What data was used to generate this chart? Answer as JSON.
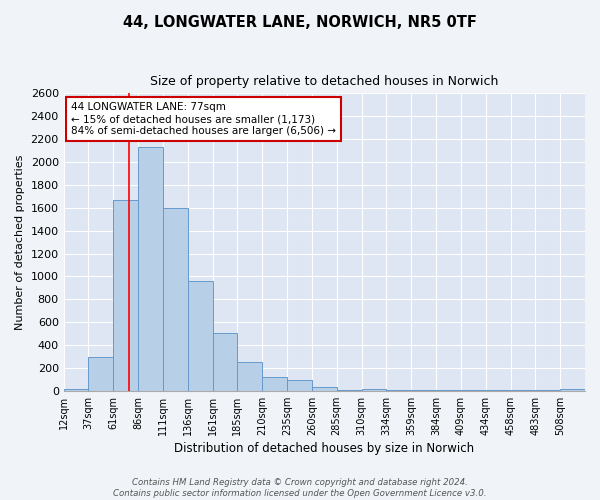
{
  "title": "44, LONGWATER LANE, NORWICH, NR5 0TF",
  "subtitle": "Size of property relative to detached houses in Norwich",
  "xlabel": "Distribution of detached houses by size in Norwich",
  "ylabel": "Number of detached properties",
  "bin_labels": [
    "12sqm",
    "37sqm",
    "61sqm",
    "86sqm",
    "111sqm",
    "136sqm",
    "161sqm",
    "185sqm",
    "210sqm",
    "235sqm",
    "260sqm",
    "285sqm",
    "310sqm",
    "334sqm",
    "359sqm",
    "384sqm",
    "409sqm",
    "434sqm",
    "458sqm",
    "483sqm",
    "508sqm"
  ],
  "bin_values": [
    20,
    295,
    1670,
    2130,
    1600,
    960,
    505,
    255,
    125,
    95,
    30,
    5,
    20,
    5,
    5,
    5,
    5,
    5,
    5,
    5,
    20
  ],
  "bar_color": "#b8cfe8",
  "bar_edge_color": "#6699cc",
  "background_color": "#dde6f2",
  "grid_color": "#ffffff",
  "ylim": [
    0,
    2600
  ],
  "yticks": [
    0,
    200,
    400,
    600,
    800,
    1000,
    1200,
    1400,
    1600,
    1800,
    2000,
    2200,
    2400,
    2600
  ],
  "annotation_title": "44 LONGWATER LANE: 77sqm",
  "annotation_line1": "← 15% of detached houses are smaller (1,173)",
  "annotation_line2": "84% of semi-detached houses are larger (6,506) →",
  "annotation_box_color": "#ffffff",
  "annotation_border_color": "#cc0000",
  "red_line_bin_index": 2.65,
  "footer1": "Contains HM Land Registry data © Crown copyright and database right 2024.",
  "footer2": "Contains public sector information licensed under the Open Government Licence v3.0.",
  "fig_width": 6.0,
  "fig_height": 5.0,
  "fig_bg": "#f0f4f8"
}
